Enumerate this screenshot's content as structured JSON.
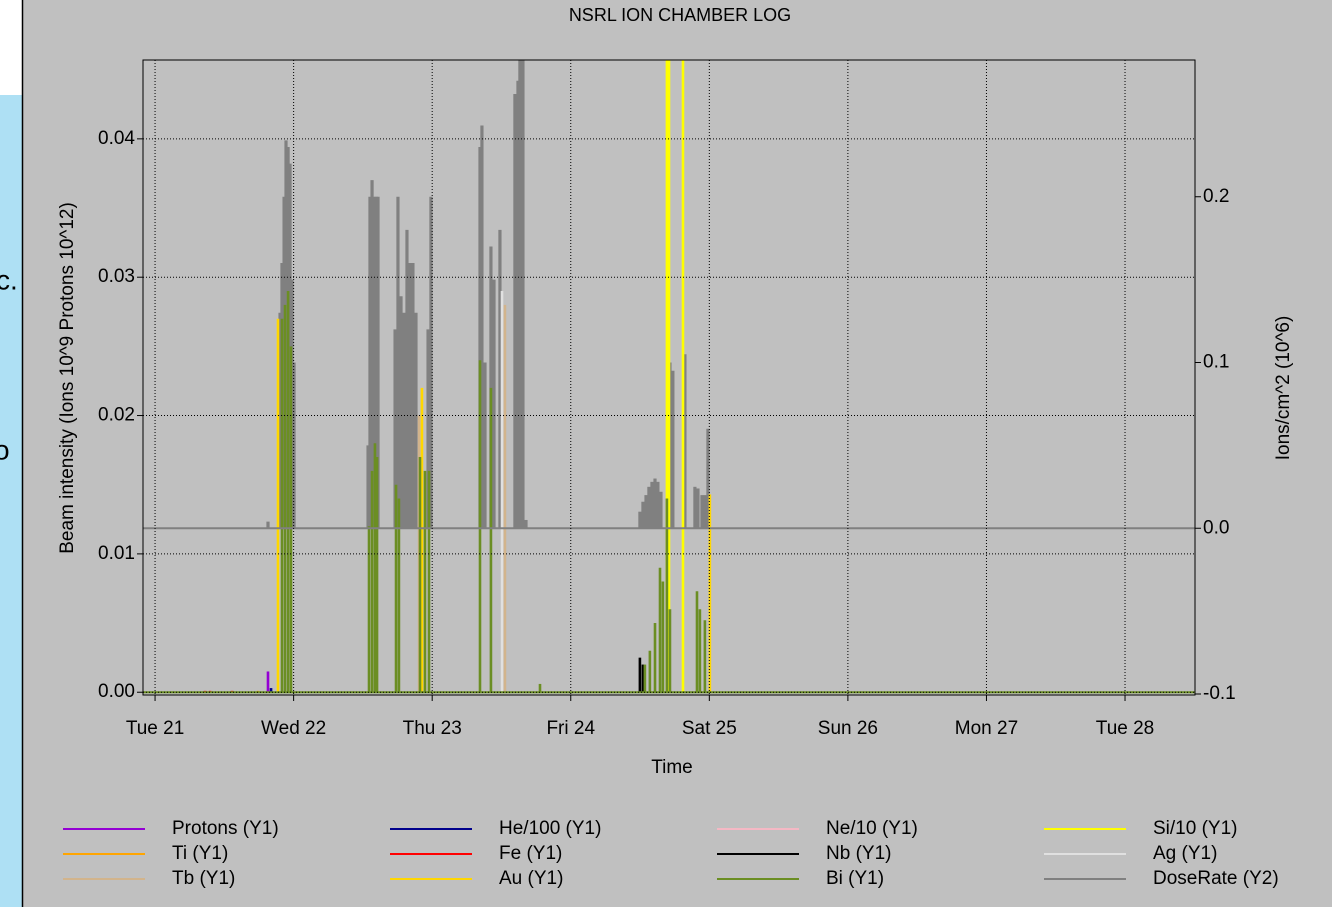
{
  "sidebar_fragments": [
    "c.",
    "o"
  ],
  "chart_data": {
    "type": "impulse",
    "title": "NSRL ION CHAMBER LOG",
    "x_label": "Time",
    "y_label": "Beam intensity (Ions 10^9 Protons 10^12)",
    "y2_label": "Ions/cm^2 (10^6)",
    "xlim": [
      20.913,
      28.505
    ],
    "xticks": [
      {
        "value": 21,
        "label": "Tue 21"
      },
      {
        "value": 22,
        "label": "Wed 22"
      },
      {
        "value": 23,
        "label": "Thu 23"
      },
      {
        "value": 24,
        "label": "Fri 24"
      },
      {
        "value": 25,
        "label": "Sat 25"
      },
      {
        "value": 26,
        "label": "Sun 26"
      },
      {
        "value": 27,
        "label": "Mon 27"
      },
      {
        "value": 28,
        "label": "Tue 28"
      }
    ],
    "ylim": [
      -0.0002,
      0.0457
    ],
    "yticks": [
      {
        "value": 0,
        "label": "0.00"
      },
      0.01,
      0.02,
      0.03,
      0.04
    ],
    "y2lim": [
      -0.1006,
      0.2825
    ],
    "y2ticks": [
      -0.1,
      {
        "value": 0,
        "label": "0.0"
      },
      0.1,
      0.2
    ],
    "grid": true,
    "legend": "bottom",
    "series": [
      {
        "name": "Protons (Y1)",
        "color": "#9400d3",
        "x": [
          21.815
        ],
        "values": [
          0.0015
        ]
      },
      {
        "name": "He/100 (Y1)",
        "color": "#00008b",
        "x": [
          21.837
        ],
        "values": [
          0.0003
        ]
      },
      {
        "name": "Ne/10 (Y1)",
        "color": "#f4b8c4",
        "x": [],
        "values": []
      },
      {
        "name": "Si/10 (Y1)",
        "color": "#ffff00",
        "x": [
          24.694,
          24.709,
          24.81
        ],
        "values": [
          0.0457,
          0.0457,
          0.0457
        ]
      },
      {
        "name": "Ti (Y1)",
        "color": "#ffa500",
        "x": [
          21.743
        ],
        "values": [
          0.0001
        ]
      },
      {
        "name": "Fe (Y1)",
        "color": "#ff0000",
        "x": [
          21.361,
          21.397,
          21.556
        ],
        "values": [
          0.0001,
          0.0001,
          0.0001
        ]
      },
      {
        "name": "Nb (Y1)",
        "color": "#000000",
        "x": [
          24.499,
          24.521
        ],
        "values": [
          0.0025,
          0.002
        ]
      },
      {
        "name": "Ag (Y1)",
        "color": "#e0e0e0",
        "x": [
          23.504
        ],
        "values": [
          0.029
        ]
      },
      {
        "name": "Tb (Y1)",
        "color": "#d2b48c",
        "x": [
          22.905,
          23.525
        ],
        "values": [
          0.02,
          0.028
        ]
      },
      {
        "name": "Au (Y1)",
        "color": "#ffd700",
        "x": [
          21.887,
          22.926,
          25.004
        ],
        "values": [
          0.027,
          0.022,
          0.0143
        ]
      },
      {
        "name": "Bi (Y1)",
        "color": "#6b8e23",
        "x": [
          21.916,
          21.938,
          21.96,
          21.981,
          22.544,
          22.566,
          22.587,
          22.602,
          22.739,
          22.76,
          22.912,
          22.948,
          22.977,
          23.345,
          23.424,
          23.778,
          24.535,
          24.571,
          24.608,
          24.644,
          24.665,
          24.694,
          24.716,
          24.911,
          24.932,
          24.968
        ],
        "values": [
          0.027,
          0.028,
          0.029,
          0.025,
          0.012,
          0.016,
          0.018,
          0.017,
          0.015,
          0.014,
          0.017,
          0.016,
          0.016,
          0.024,
          0.022,
          0.0006,
          0.002,
          0.003,
          0.005,
          0.009,
          0.008,
          0.014,
          0.006,
          0.0073,
          0.006,
          0.0052
        ]
      },
      {
        "name": "DoseRate (Y2)",
        "color": "#808080",
        "axis": "y2",
        "x": [
          21.815,
          21.902,
          21.916,
          21.931,
          21.945,
          21.96,
          21.974,
          21.988,
          22.003,
          22.537,
          22.551,
          22.566,
          22.58,
          22.595,
          22.609,
          22.732,
          22.753,
          22.775,
          22.797,
          22.818,
          22.84,
          22.861,
          22.883,
          22.97,
          22.991,
          23.345,
          23.359,
          23.381,
          23.424,
          23.446,
          23.489,
          23.597,
          23.619,
          23.633,
          23.655,
          23.677,
          24.499,
          24.521,
          24.543,
          24.564,
          24.586,
          24.608,
          24.629,
          24.651,
          24.716,
          24.737,
          24.824,
          24.896,
          24.918,
          24.947,
          24.968,
          24.99
        ],
        "values": [
          0.004,
          0.13,
          0.16,
          0.2,
          0.234,
          0.23,
          0.22,
          0.15,
          0.1,
          0.05,
          0.2,
          0.21,
          0.2,
          0.2,
          0.2,
          0.12,
          0.2,
          0.14,
          0.13,
          0.18,
          0.16,
          0.16,
          0.13,
          0.12,
          0.2,
          0.23,
          0.243,
          0.1,
          0.17,
          0.15,
          0.18,
          0.262,
          0.27,
          0.2825,
          0.2825,
          0.005,
          0.01,
          0.016,
          0.02,
          0.025,
          0.028,
          0.03,
          0.028,
          0.022,
          0.1,
          0.095,
          0.105,
          0.025,
          0.024,
          0.02,
          0.02,
          0.06
        ]
      }
    ]
  }
}
